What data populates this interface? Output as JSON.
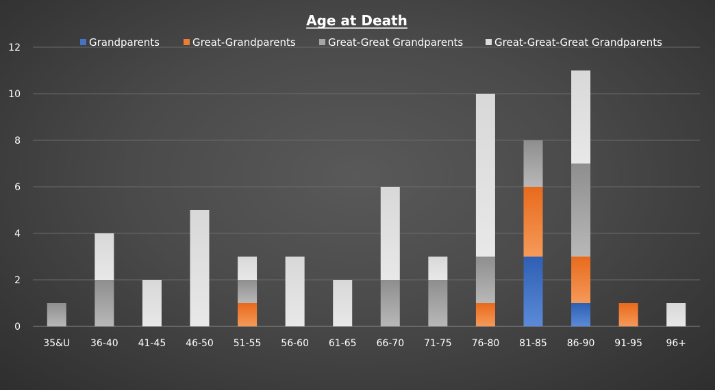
{
  "chart_data": {
    "type": "bar",
    "stacked": true,
    "title": "Age at Death",
    "xlabel": "",
    "ylabel": "",
    "ylim": [
      0,
      12
    ],
    "yticks": [
      0,
      2,
      4,
      6,
      8,
      10,
      12
    ],
    "grid": true,
    "legend_position": "top",
    "categories": [
      "35&U",
      "36-40",
      "41-45",
      "46-50",
      "51-55",
      "56-60",
      "61-65",
      "66-70",
      "71-75",
      "76-80",
      "81-85",
      "86-90",
      "91-95",
      "96+"
    ],
    "series": [
      {
        "name": "Grandparents",
        "color": "#4472c4",
        "values": [
          0,
          0,
          0,
          0,
          0,
          0,
          0,
          0,
          0,
          0,
          3,
          1,
          0,
          0
        ]
      },
      {
        "name": "Great-Grandparents",
        "color": "#ed7d31",
        "values": [
          0,
          0,
          0,
          0,
          1,
          0,
          0,
          0,
          0,
          1,
          3,
          2,
          1,
          0
        ]
      },
      {
        "name": "Great-Great Grandparents",
        "color": "#a5a5a5",
        "values": [
          1,
          2,
          0,
          0,
          1,
          0,
          0,
          2,
          2,
          2,
          2,
          4,
          0,
          0
        ]
      },
      {
        "name": "Great-Great-Great Grandparents",
        "color": "#dcdcdc",
        "values": [
          0,
          2,
          2,
          5,
          1,
          3,
          2,
          4,
          1,
          7,
          0,
          4,
          0,
          1
        ]
      }
    ]
  }
}
